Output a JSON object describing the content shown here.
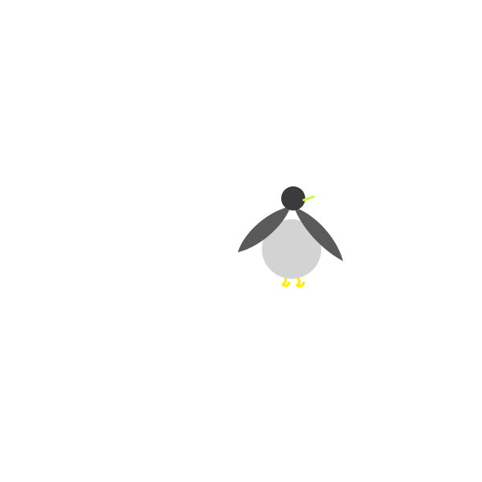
{
  "scene": {
    "background_color": "#ffffff",
    "character": {
      "kind": "penguin",
      "colors": {
        "body": "#d3d3d3",
        "head": "#3b3b3b",
        "wings": "#5a5a5a",
        "beak": "#c8ff32",
        "feet": "#ffee00"
      }
    }
  }
}
